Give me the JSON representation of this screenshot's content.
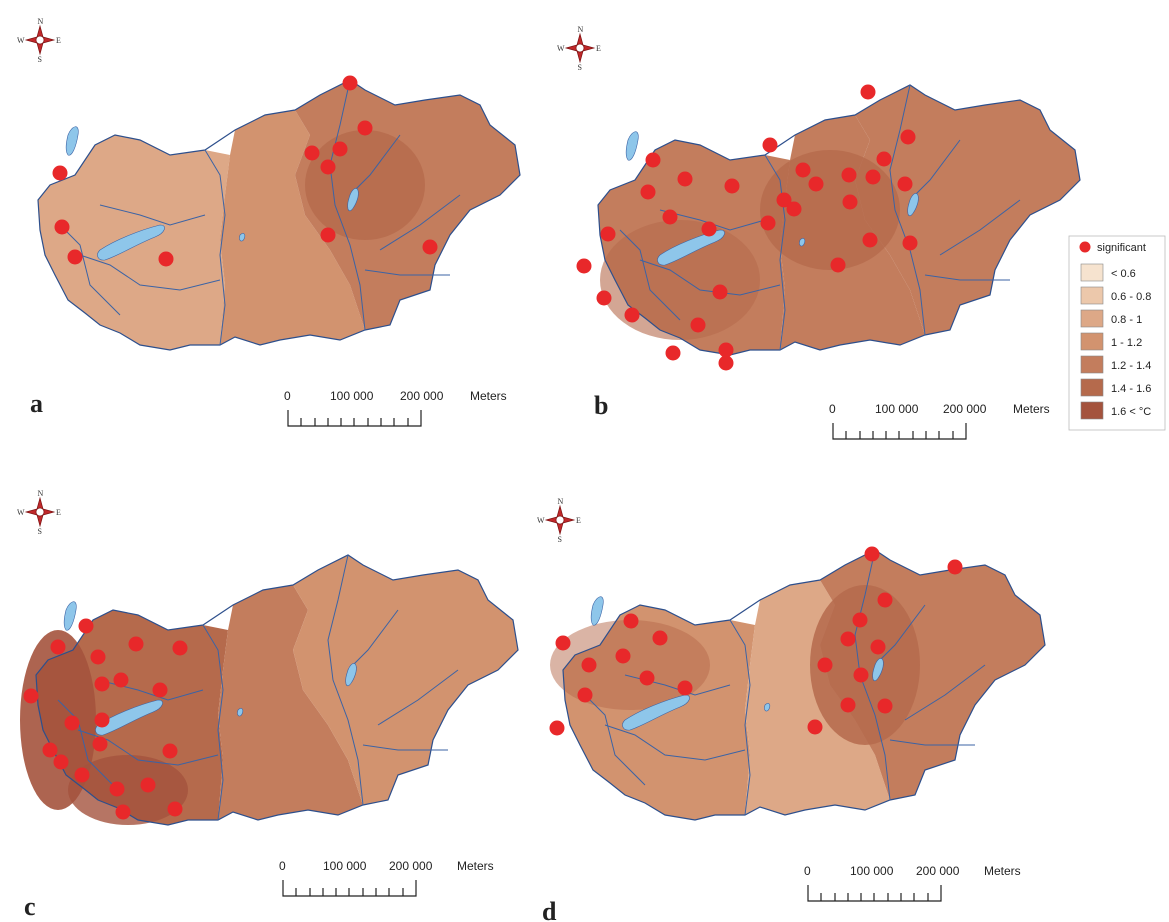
{
  "compass": {
    "n": "N",
    "s": "S",
    "e": "E",
    "w": "W"
  },
  "scale_bar": {
    "tick_0": "0",
    "tick_1": "100 000",
    "tick_2": "200 000",
    "unit": "Meters"
  },
  "legend": {
    "marker_label": "significant",
    "marker_color": "#e8282a",
    "classes": [
      {
        "label": "< 0.6",
        "color": "#f6e3cf"
      },
      {
        "label": "0.6 - 0.8",
        "color": "#ecc8ab"
      },
      {
        "label": "0.8 - 1",
        "color": "#dda887"
      },
      {
        "label": "1 - 1.2",
        "color": "#d2936f"
      },
      {
        "label": "1.2 - 1.4",
        "color": "#c37d5d"
      },
      {
        "label": "1.4 - 1.6",
        "color": "#b56a4c"
      },
      {
        "label": "1.6 < °C",
        "color": "#a4533d"
      }
    ]
  },
  "panels": [
    {
      "label": "a",
      "west_class": 2,
      "middle_class": 3,
      "east_class": 4,
      "hotspot_class": 5,
      "significant_stations": 12
    },
    {
      "label": "b",
      "west_class": 4,
      "middle_class": 4,
      "east_class": 4,
      "hotspot_class": 5,
      "significant_stations": 37
    },
    {
      "label": "c",
      "west_class": 5,
      "middle_class": 4,
      "east_class": 3,
      "hotspot_class": 6,
      "significant_stations": 21
    },
    {
      "label": "d",
      "west_class": 3,
      "middle_class": 2,
      "east_class": 4,
      "hotspot_class": 5,
      "significant_stations": 24
    }
  ]
}
